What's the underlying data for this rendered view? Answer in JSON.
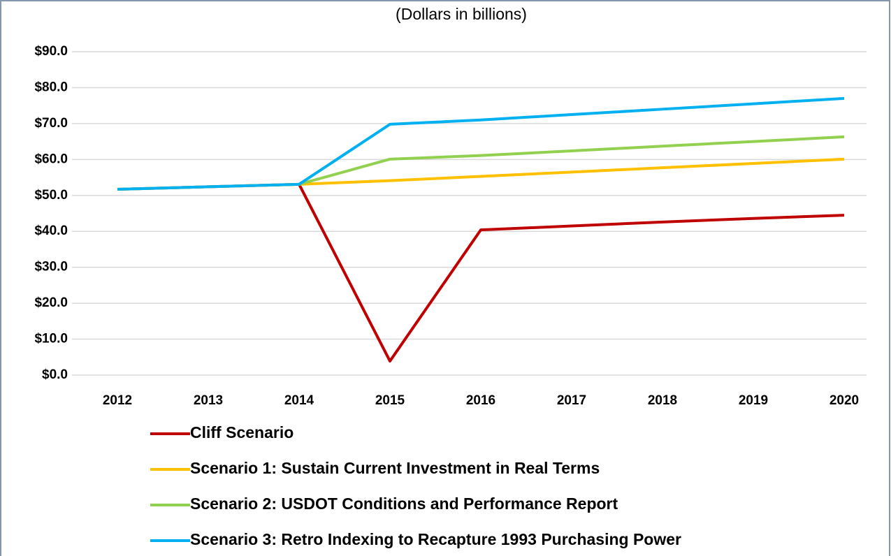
{
  "chart_data": {
    "type": "line",
    "subtitle": "(Dollars in billions)",
    "categories": [
      "2012",
      "2013",
      "2014",
      "2015",
      "2016",
      "2017",
      "2018",
      "2019",
      "2020"
    ],
    "series": [
      {
        "name": "Cliff Scenario",
        "color": "#c00000",
        "values": [
          51.7,
          52.4,
          53.1,
          3.9,
          40.4,
          41.5,
          42.6,
          43.6,
          44.5
        ]
      },
      {
        "name": "Scenario 1: Sustain Current Investment in Real Terms",
        "color": "#ffc000",
        "values": [
          51.7,
          52.4,
          53.1,
          54.1,
          55.3,
          56.5,
          57.7,
          58.9,
          60.1
        ]
      },
      {
        "name": "Scenario 2: USDOT Conditions and Performance Report",
        "color": "#92d050",
        "values": [
          51.7,
          52.4,
          53.1,
          60.1,
          61.1,
          62.4,
          63.7,
          65.0,
          66.3
        ]
      },
      {
        "name": "Scenario 3: Retro Indexing to Recapture 1993 Purchasing Power",
        "color": "#00b0f0",
        "values": [
          51.7,
          52.4,
          53.1,
          69.8,
          71.0,
          72.5,
          74.0,
          75.5,
          77.0
        ]
      }
    ],
    "ylim": [
      0,
      90
    ],
    "yticks": [
      {
        "value": 0,
        "label": "$0.0"
      },
      {
        "value": 10,
        "label": "$10.0"
      },
      {
        "value": 20,
        "label": "$20.0"
      },
      {
        "value": 30,
        "label": "$30.0"
      },
      {
        "value": 40,
        "label": "$40.0"
      },
      {
        "value": 50,
        "label": "$50.0"
      },
      {
        "value": 60,
        "label": "$60.0"
      },
      {
        "value": 70,
        "label": "$70.0"
      },
      {
        "value": 80,
        "label": "$80.0"
      },
      {
        "value": 90,
        "label": "$90.0"
      }
    ],
    "grid": true,
    "legend": "bottom"
  }
}
